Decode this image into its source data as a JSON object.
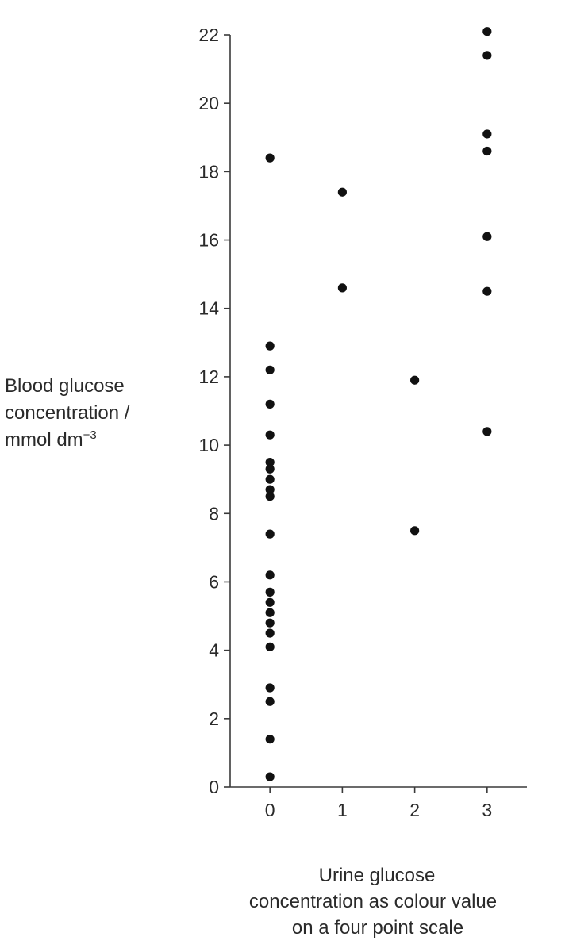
{
  "chart_data": {
    "type": "scatter",
    "title": "",
    "ylabel_lines": [
      "Blood glucose",
      "concentration /",
      "mmol dm"
    ],
    "ylabel_superscript": "−3",
    "xlabel_lines": [
      "Urine glucose",
      "concentration as colour value",
      "on a four point scale"
    ],
    "xticks": [
      0,
      1,
      2,
      3
    ],
    "yticks": [
      0,
      2,
      4,
      6,
      8,
      10,
      12,
      14,
      16,
      18,
      20,
      22
    ],
    "xlim": [
      -0.55,
      3.55
    ],
    "ylim": [
      0,
      22
    ],
    "grid": false,
    "legend": "none",
    "marker_color": "#111111",
    "points": [
      {
        "x": 0,
        "y": 18.4
      },
      {
        "x": 0,
        "y": 12.9
      },
      {
        "x": 0,
        "y": 12.2
      },
      {
        "x": 0,
        "y": 11.2
      },
      {
        "x": 0,
        "y": 10.3
      },
      {
        "x": 0,
        "y": 9.5
      },
      {
        "x": 0,
        "y": 9.3
      },
      {
        "x": 0,
        "y": 9.0
      },
      {
        "x": 0,
        "y": 8.7
      },
      {
        "x": 0,
        "y": 8.5
      },
      {
        "x": 0,
        "y": 7.4
      },
      {
        "x": 0,
        "y": 6.2
      },
      {
        "x": 0,
        "y": 5.7
      },
      {
        "x": 0,
        "y": 5.4
      },
      {
        "x": 0,
        "y": 5.1
      },
      {
        "x": 0,
        "y": 4.8
      },
      {
        "x": 0,
        "y": 4.5
      },
      {
        "x": 0,
        "y": 4.1
      },
      {
        "x": 0,
        "y": 2.9
      },
      {
        "x": 0,
        "y": 2.5
      },
      {
        "x": 0,
        "y": 1.4
      },
      {
        "x": 0,
        "y": 0.3
      },
      {
        "x": 1,
        "y": 17.4
      },
      {
        "x": 1,
        "y": 14.6
      },
      {
        "x": 2,
        "y": 11.9
      },
      {
        "x": 2,
        "y": 7.5
      },
      {
        "x": 3,
        "y": 22.1
      },
      {
        "x": 3,
        "y": 21.4
      },
      {
        "x": 3,
        "y": 19.1
      },
      {
        "x": 3,
        "y": 18.6
      },
      {
        "x": 3,
        "y": 16.1
      },
      {
        "x": 3,
        "y": 14.5
      },
      {
        "x": 3,
        "y": 10.4
      }
    ]
  }
}
